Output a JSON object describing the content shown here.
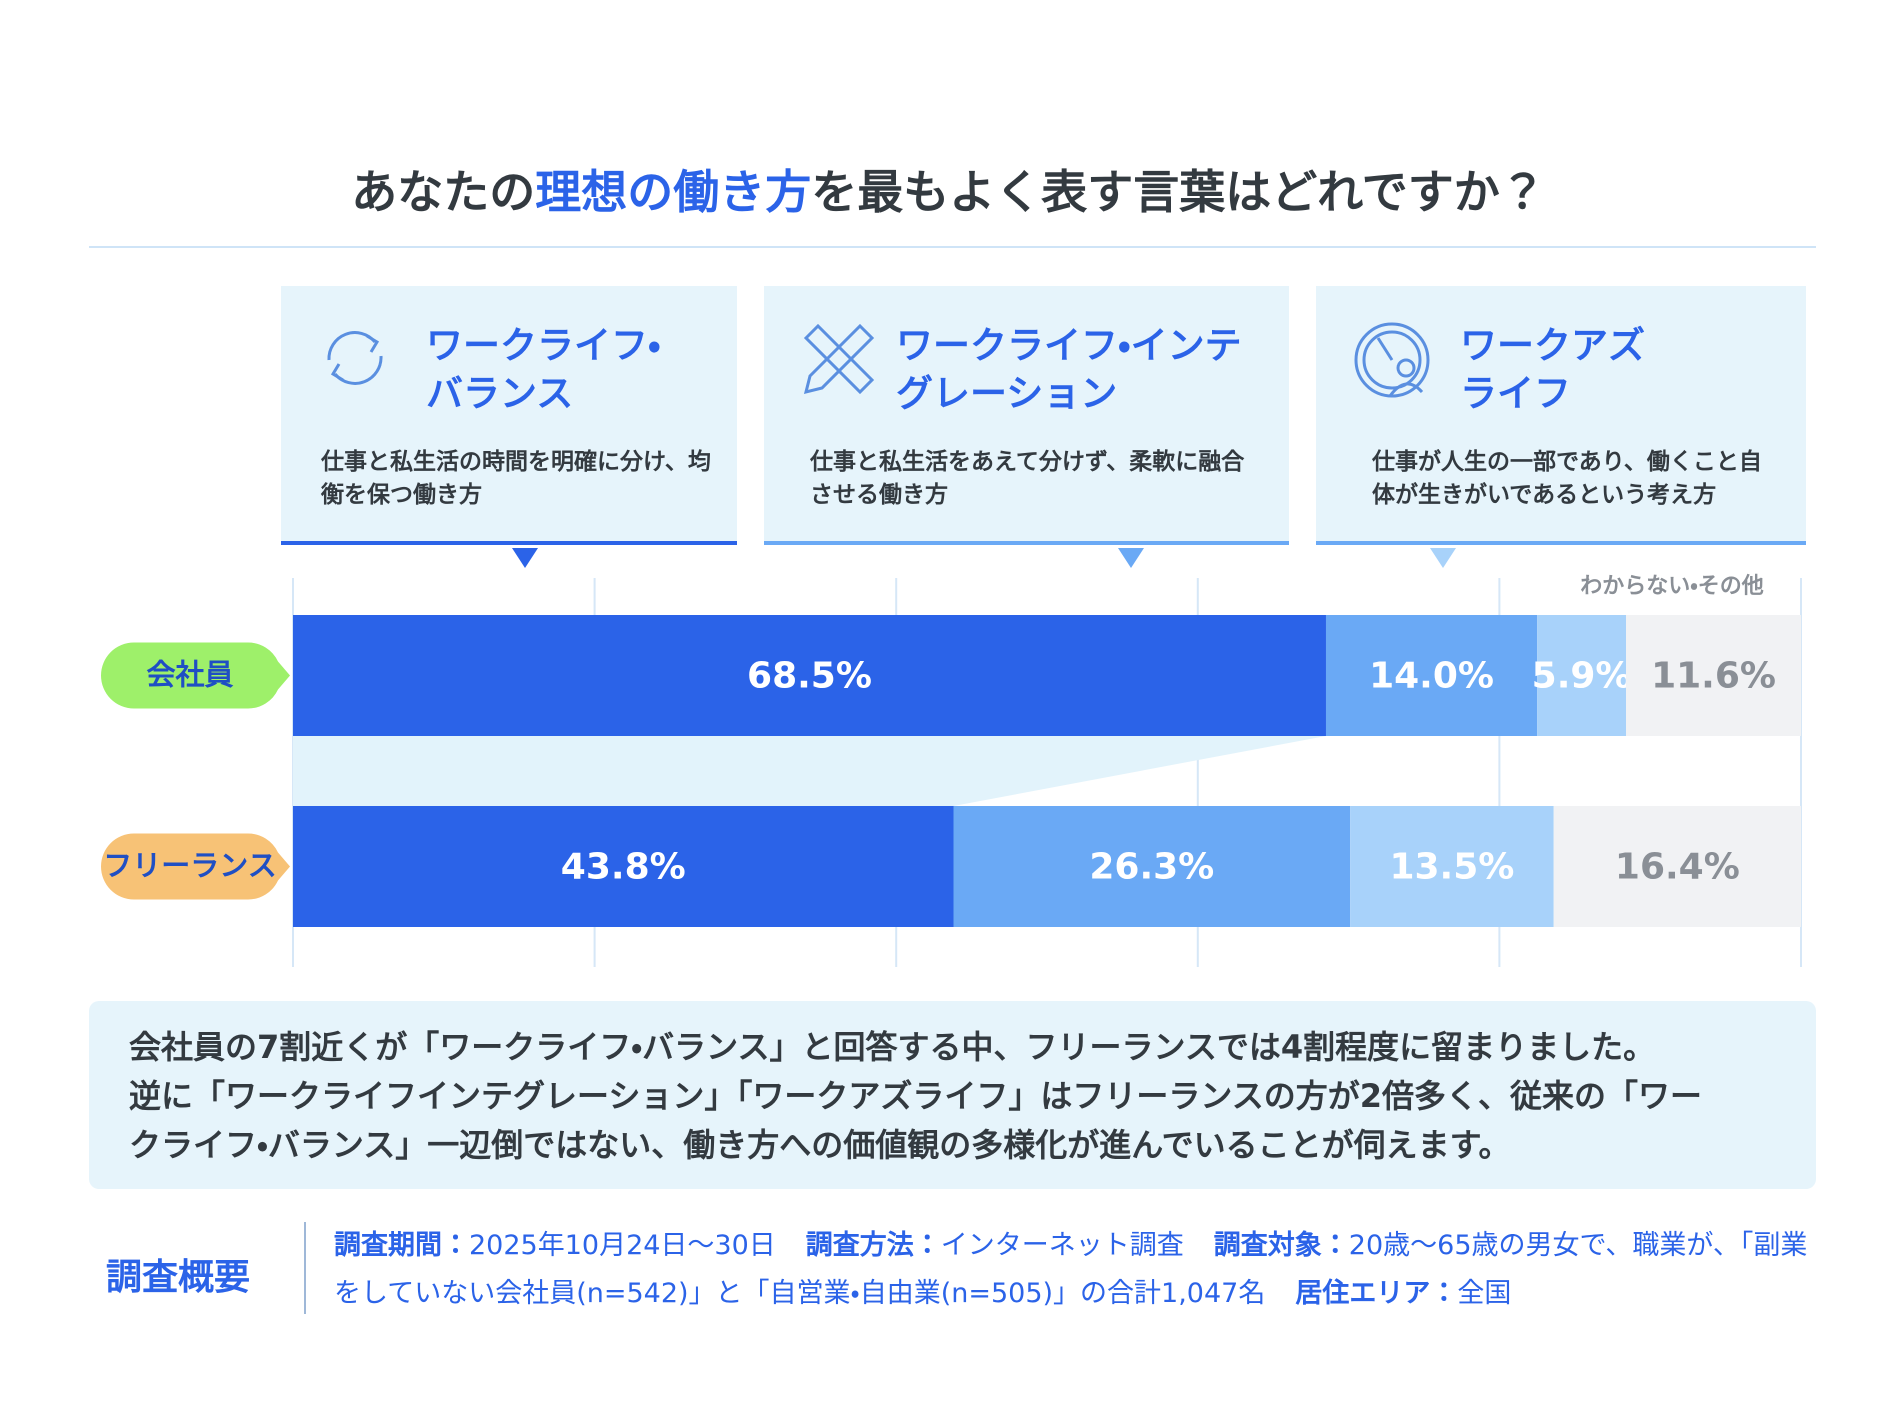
{
  "chart_data": {
    "type": "bar",
    "orientation": "horizontal",
    "stacked": true,
    "title": [
      "あなたの",
      "理想の働き方",
      "を最もよく表す言葉はどれですか？"
    ],
    "categories": [
      "会社員",
      "フリーランス"
    ],
    "category_colors": [
      "#9ef06a",
      "#f7c276"
    ],
    "series": [
      {
        "name": "ワークライフ・バランス",
        "description": "仕事と私生活の時間を明確に分け、均衡を保つ働き方",
        "color": "#2b63e8",
        "label_color": "#ffffff",
        "values": [
          68.5,
          43.8
        ],
        "value_labels": [
          "68.5%",
          "43.8%"
        ]
      },
      {
        "name": "ワークライフ・インテグレーション",
        "description": "仕事と私生活をあえて分けず、柔軟に融合させる働き方",
        "color": "#6aa9f5",
        "label_color": "#ffffff",
        "values": [
          14.0,
          26.3
        ],
        "value_labels": [
          "14.0%",
          "26.3%"
        ]
      },
      {
        "name": "ワークアズライフ",
        "description": "仕事が人生の一部であり、働くこと自体が生きがいであるという考え方",
        "color": "#a8d2fa",
        "label_color": "#ffffff",
        "values": [
          5.9,
          13.5
        ],
        "value_labels": [
          "5.9%",
          "13.5%"
        ]
      },
      {
        "name": "わからない・その他",
        "color": "#f1f2f4",
        "label_color": "#8a8f96",
        "values": [
          11.6,
          16.4
        ],
        "value_labels": [
          "11.6%",
          "16.4%"
        ]
      }
    ],
    "xlim": [
      0,
      100
    ],
    "xticks": [
      0,
      20,
      40,
      60,
      80,
      100
    ],
    "grid": true
  },
  "summary": [
    "会社員の7割近くが「ワークライフ・バランス」と回答する中、フリーランスでは4割程度に留まりました。",
    "逆に「ワークライフインテグレーション」「ワークアズライフ」はフリーランスの方が2倍多く、従来の「ワー",
    "クライフ・バランス」一辺倒ではない、働き方への価値観の多様化が進んでいることが伺えます。"
  ],
  "survey": {
    "heading": "調査概要",
    "items": [
      {
        "label": "調査期間：",
        "text": "2025年10月24日〜30日"
      },
      {
        "label": "調査方法：",
        "text": "インターネット調査"
      },
      {
        "label": "調査対象：",
        "text": "20歳〜65歳の男女で、職業が、「副業をしていない会社員(n=542)」と「自営業・自由業(n=505)」の合計1,047名"
      },
      {
        "label": "居住エリア：",
        "text": "全国"
      }
    ]
  }
}
